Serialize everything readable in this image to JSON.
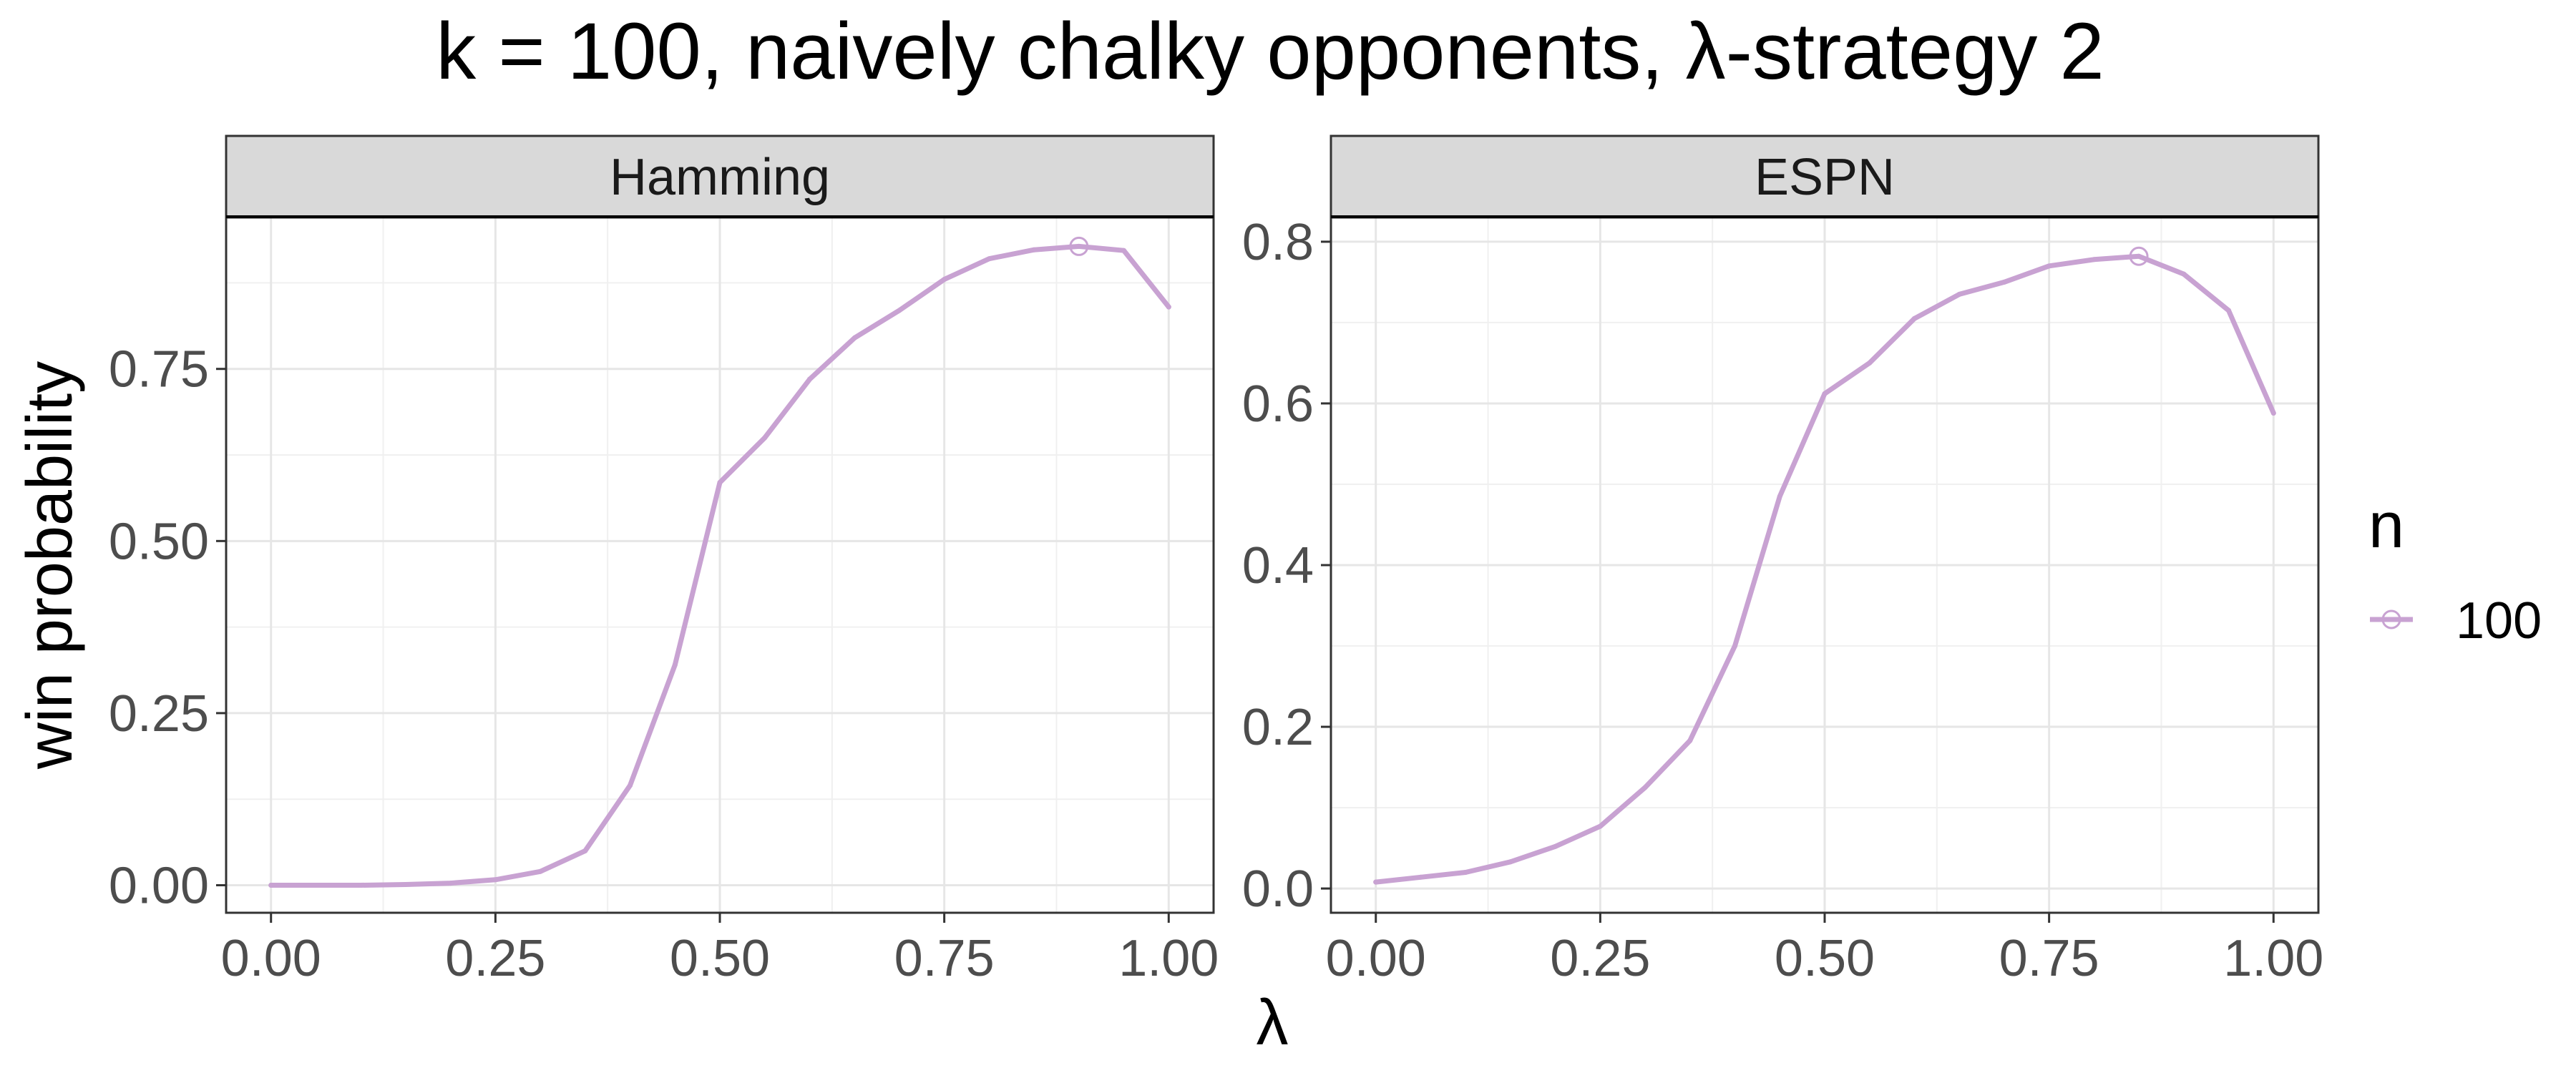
{
  "chart_data": {
    "type": "line",
    "title": "k = 100, naively chalky opponents, λ-strategy 2",
    "xlabel": "λ",
    "ylabel": "win probability",
    "line_color": "#C8A2D2",
    "grid": true,
    "legend": {
      "title": "n",
      "position": "right",
      "entries": [
        "100"
      ]
    },
    "x": [
      0.0,
      0.05,
      0.1,
      0.15,
      0.2,
      0.25,
      0.3,
      0.35,
      0.4,
      0.45,
      0.5,
      0.55,
      0.6,
      0.65,
      0.7,
      0.75,
      0.8,
      0.85,
      0.9,
      0.95,
      1.0
    ],
    "panels": [
      {
        "name": "Hamming",
        "xlim": [
          -0.05,
          1.05
        ],
        "ylim": [
          -0.04,
          0.97
        ],
        "xticks": [
          0.0,
          0.25,
          0.5,
          0.75,
          1.0
        ],
        "xtick_labels": [
          "0.00",
          "0.25",
          "0.50",
          "0.75",
          "1.00"
        ],
        "yticks": [
          0.0,
          0.25,
          0.5,
          0.75
        ],
        "ytick_labels": [
          "0.00",
          "0.25",
          "0.50",
          "0.75"
        ],
        "series": [
          {
            "name": "100",
            "values": [
              0.0,
              0.0,
              0.0,
              0.001,
              0.003,
              0.008,
              0.02,
              0.05,
              0.145,
              0.32,
              0.585,
              0.65,
              0.735,
              0.795,
              0.835,
              0.88,
              0.91,
              0.923,
              0.928,
              0.922,
              0.84
            ],
            "highlight": {
              "x": 0.9,
              "y": 0.928
            }
          }
        ]
      },
      {
        "name": "ESPN",
        "xlim": [
          -0.05,
          1.05
        ],
        "ylim": [
          -0.03,
          0.83
        ],
        "xticks": [
          0.0,
          0.25,
          0.5,
          0.75,
          1.0
        ],
        "xtick_labels": [
          "0.00",
          "0.25",
          "0.50",
          "0.75",
          "1.00"
        ],
        "yticks": [
          0.0,
          0.2,
          0.4,
          0.6,
          0.8
        ],
        "ytick_labels": [
          "0.0",
          "0.2",
          "0.4",
          "0.6",
          "0.8"
        ],
        "series": [
          {
            "name": "100",
            "values": [
              0.008,
              0.014,
              0.02,
              0.033,
              0.052,
              0.077,
              0.125,
              0.183,
              0.3,
              0.485,
              0.612,
              0.65,
              0.705,
              0.735,
              0.75,
              0.77,
              0.778,
              0.782,
              0.76,
              0.715,
              0.588
            ],
            "highlight": {
              "x": 0.85,
              "y": 0.782
            }
          }
        ]
      }
    ]
  }
}
